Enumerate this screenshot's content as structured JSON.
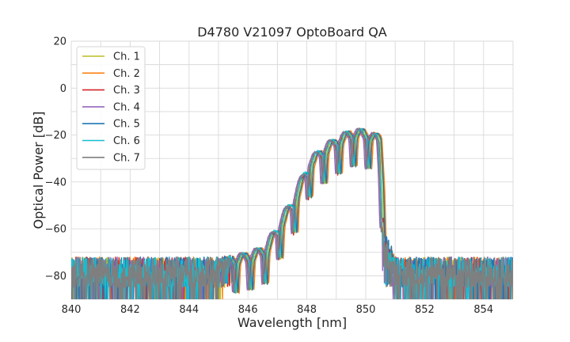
{
  "chart_data": {
    "type": "line",
    "title": "D4780 V21097 OptoBoard QA",
    "xlabel": "Wavelength [nm]",
    "ylabel": "Optical Power [dB]",
    "xlim": [
      840,
      855
    ],
    "ylim": [
      -90,
      20
    ],
    "xticks": [
      840,
      842,
      844,
      846,
      848,
      850,
      852,
      854
    ],
    "yticks": [
      20,
      0,
      -20,
      -40,
      -60,
      -80
    ],
    "xtick_labels": [
      "840",
      "842",
      "844",
      "846",
      "848",
      "850",
      "852",
      "854"
    ],
    "ytick_labels": [
      "20",
      "0",
      "−20",
      "−40",
      "−60",
      "−80"
    ],
    "grid": true,
    "legend_position": "top-left",
    "noise_floor": {
      "mean": -80,
      "min": -90,
      "max": -72
    },
    "envelope": {
      "x": [
        845.0,
        846.0,
        846.6,
        847.1,
        847.6,
        848.1,
        848.6,
        849.1,
        849.6,
        850.1,
        850.45,
        850.65,
        850.9
      ],
      "y": [
        -72,
        -70,
        -67,
        -56,
        -45,
        -30,
        -24,
        -20,
        -17,
        -18,
        -20,
        -60,
        -72
      ]
    },
    "fringe_period_nm": 0.5,
    "series": [
      {
        "name": "Ch. 1",
        "color": "#bcbd22",
        "shift": 0.02,
        "band_offset": 0.04,
        "noise_seed": 1
      },
      {
        "name": "Ch. 2",
        "color": "#ff7f0e",
        "shift": 0.1,
        "band_offset": 0.1,
        "noise_seed": 2
      },
      {
        "name": "Ch. 3",
        "color": "#d62728",
        "shift": -0.05,
        "band_offset": 0.0,
        "noise_seed": 3
      },
      {
        "name": "Ch. 4",
        "color": "#9467bd",
        "shift": -0.12,
        "band_offset": -0.08,
        "noise_seed": 4
      },
      {
        "name": "Ch. 5",
        "color": "#1f77b4",
        "shift": 0.06,
        "band_offset": 0.07,
        "noise_seed": 5
      },
      {
        "name": "Ch. 6",
        "color": "#17becf",
        "shift": -0.02,
        "band_offset": -0.02,
        "noise_seed": 6
      },
      {
        "name": "Ch. 7",
        "color": "#7f7f7f",
        "shift": -0.08,
        "band_offset": -0.05,
        "noise_seed": 7
      }
    ]
  }
}
